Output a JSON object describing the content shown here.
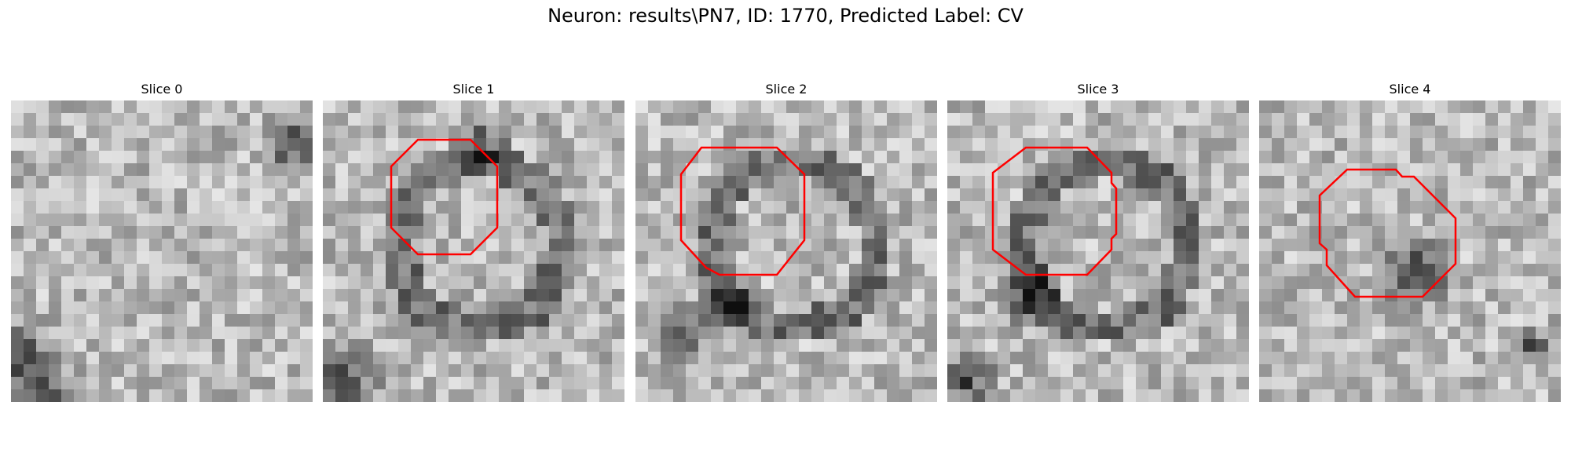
{
  "figure": {
    "title": "Neuron: results\\PN7, ID: 1770, Predicted Label: CV"
  },
  "colors": {
    "contour": "#ff0000",
    "background": "#ffffff"
  },
  "slices": [
    {
      "title": "Slice 0",
      "contour": null
    },
    {
      "title": "Slice 1",
      "contour": "octagon"
    },
    {
      "title": "Slice 2",
      "contour": "octagon"
    },
    {
      "title": "Slice 3",
      "contour": "octagon-notched"
    },
    {
      "title": "Slice 4",
      "contour": "irregular-octagon"
    }
  ]
}
